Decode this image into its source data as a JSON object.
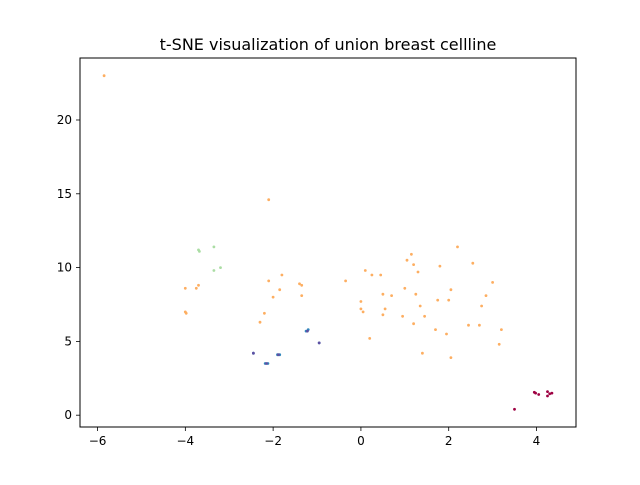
{
  "chart_data": {
    "type": "scatter",
    "title": "t-SNE visualization of union breast cellline",
    "xlabel": "",
    "ylabel": "",
    "xlim": [
      -6.4,
      4.9
    ],
    "ylim": [
      -0.8,
      24.2
    ],
    "xticks": [
      -6,
      -4,
      -2,
      0,
      2,
      4
    ],
    "yticks": [
      0,
      5,
      10,
      15,
      20
    ],
    "grid": false,
    "legend": false,
    "series": [
      {
        "color": "#fdae61",
        "points": [
          [
            -5.85,
            23.0
          ],
          [
            -2.1,
            14.6
          ],
          [
            -4.0,
            8.6
          ],
          [
            -3.75,
            8.6
          ],
          [
            -3.7,
            8.8
          ],
          [
            -4.0,
            7.0
          ],
          [
            -3.98,
            6.9
          ],
          [
            -2.1,
            9.1
          ],
          [
            -1.8,
            9.5
          ],
          [
            -1.4,
            8.9
          ],
          [
            -1.35,
            8.8
          ],
          [
            -1.85,
            8.5
          ],
          [
            -2.0,
            8.0
          ],
          [
            -1.35,
            8.1
          ],
          [
            -2.2,
            6.9
          ],
          [
            -2.3,
            6.3
          ],
          [
            -0.35,
            9.1
          ],
          [
            0.1,
            9.8
          ],
          [
            0.25,
            9.5
          ],
          [
            0.45,
            9.5
          ],
          [
            1.05,
            10.5
          ],
          [
            1.15,
            10.9
          ],
          [
            1.2,
            10.2
          ],
          [
            1.3,
            9.7
          ],
          [
            1.8,
            10.1
          ],
          [
            2.2,
            11.4
          ],
          [
            2.55,
            10.3
          ],
          [
            0.0,
            7.7
          ],
          [
            0.0,
            7.2
          ],
          [
            0.05,
            7.0
          ],
          [
            0.5,
            8.2
          ],
          [
            0.55,
            7.2
          ],
          [
            0.5,
            6.8
          ],
          [
            0.7,
            8.1
          ],
          [
            0.95,
            6.7
          ],
          [
            1.0,
            8.6
          ],
          [
            1.25,
            8.2
          ],
          [
            1.35,
            7.4
          ],
          [
            1.45,
            6.7
          ],
          [
            1.2,
            6.2
          ],
          [
            1.75,
            7.8
          ],
          [
            2.0,
            7.8
          ],
          [
            2.05,
            8.5
          ],
          [
            2.45,
            6.1
          ],
          [
            2.7,
            6.1
          ],
          [
            2.75,
            7.4
          ],
          [
            2.85,
            8.1
          ],
          [
            3.0,
            9.0
          ],
          [
            1.7,
            5.8
          ],
          [
            1.95,
            5.5
          ],
          [
            2.05,
            3.9
          ],
          [
            1.4,
            4.2
          ],
          [
            0.2,
            5.2
          ],
          [
            3.2,
            5.8
          ],
          [
            3.15,
            4.8
          ]
        ]
      },
      {
        "color": "#abdda4",
        "points": [
          [
            -3.7,
            11.2
          ],
          [
            -3.68,
            11.1
          ],
          [
            -3.35,
            11.4
          ],
          [
            -3.35,
            9.8
          ],
          [
            -3.2,
            10.0
          ]
        ]
      },
      {
        "color": "#3288bd",
        "points": [
          [
            -2.45,
            4.2
          ],
          [
            -2.18,
            3.5
          ],
          [
            -2.12,
            3.5
          ],
          [
            -1.9,
            4.1
          ],
          [
            -1.85,
            4.1
          ],
          [
            -1.25,
            5.7
          ],
          [
            -1.2,
            5.8
          ],
          [
            -0.95,
            4.9
          ]
        ]
      },
      {
        "color": "#5e4fa2",
        "points": [
          [
            -2.45,
            4.2
          ],
          [
            -2.15,
            3.5
          ],
          [
            -1.88,
            4.1
          ],
          [
            -1.22,
            5.7
          ],
          [
            -0.95,
            4.9
          ]
        ]
      },
      {
        "color": "#9e0142",
        "points": [
          [
            3.5,
            0.4
          ],
          [
            3.95,
            1.55
          ],
          [
            3.98,
            1.5
          ],
          [
            4.05,
            1.4
          ],
          [
            4.25,
            1.3
          ],
          [
            4.25,
            1.6
          ],
          [
            4.35,
            1.5
          ],
          [
            4.3,
            1.45
          ]
        ]
      }
    ]
  }
}
